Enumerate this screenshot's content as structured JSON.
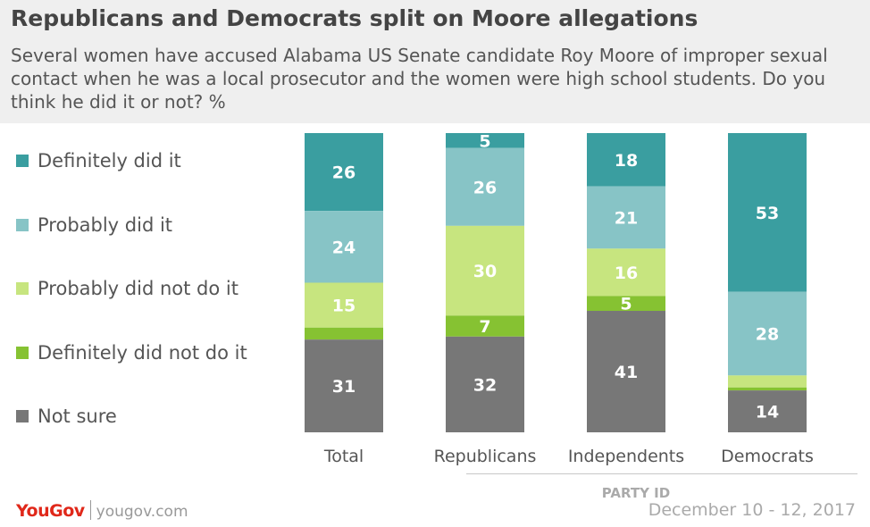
{
  "title": "Republicans and Democrats split on Moore allegations",
  "subtitle": "Several women have accused Alabama US Senate candidate Roy Moore of improper sexual contact when he was a local prosecutor and the women were high school students. Do you think he did it or not? %",
  "party_axis_label": "PARTY ID",
  "footer": {
    "logo": "YouGov",
    "url": "yougov.com",
    "date": "December 10 - 12, 2017"
  },
  "colors": {
    "definitely_did": "#3a9ea0",
    "probably_did": "#87c4c6",
    "probably_not": "#c7e57f",
    "definitely_not": "#86c232",
    "not_sure": "#777777"
  },
  "chart_data": {
    "type": "bar",
    "stacked": true,
    "ylim": [
      0,
      100
    ],
    "legend_position": "left",
    "categories": [
      "Total",
      "Republicans",
      "Independents",
      "Democrats"
    ],
    "series": [
      {
        "name": "Definitely did it",
        "color": "#3a9ea0",
        "values": [
          26,
          5,
          18,
          53
        ],
        "labels": [
          "26",
          "5",
          "18",
          "53"
        ]
      },
      {
        "name": "Probably did it",
        "color": "#87c4c6",
        "values": [
          24,
          26,
          21,
          28
        ],
        "labels": [
          "24",
          "26",
          "21",
          "28"
        ]
      },
      {
        "name": "Probably did not do it",
        "color": "#c7e57f",
        "values": [
          15,
          30,
          16,
          4
        ],
        "labels": [
          "15",
          "30",
          "16",
          ""
        ]
      },
      {
        "name": "Definitely did not do it",
        "color": "#86c232",
        "values": [
          4,
          7,
          5,
          1
        ],
        "labels": [
          "",
          "7",
          "5",
          ""
        ]
      },
      {
        "name": "Not sure",
        "color": "#777777",
        "values": [
          31,
          32,
          41,
          14
        ],
        "labels": [
          "31",
          "32",
          "41",
          "14"
        ]
      }
    ]
  }
}
